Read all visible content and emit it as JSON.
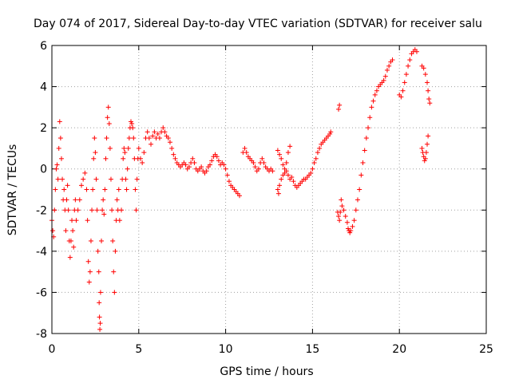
{
  "chart_data": {
    "type": "scatter",
    "title": "Day 074 of 2017, Sidereal Day-to-day VTEC variation (SDTVAR) for receiver salu",
    "xlabel": "GPS time / hours",
    "ylabel": "SDTVAR / TECUs",
    "xlim": [
      0,
      25
    ],
    "ylim": [
      -8,
      6
    ],
    "xticks": [
      "0",
      "5",
      "10",
      "15",
      "20",
      "25"
    ],
    "yticks": [
      "-8",
      "-6",
      "-4",
      "-2",
      "0",
      "2",
      "4",
      "6"
    ],
    "grid": true,
    "marker": "+",
    "color": "#ff0000",
    "series": [
      {
        "name": "SDTVAR",
        "points": [
          [
            0.0,
            -2.5
          ],
          [
            0.05,
            -3.0
          ],
          [
            0.1,
            -3.3
          ],
          [
            0.15,
            -2.0
          ],
          [
            0.2,
            -1.0
          ],
          [
            0.25,
            0.0
          ],
          [
            0.3,
            0.2
          ],
          [
            0.35,
            -0.5
          ],
          [
            0.4,
            1.0
          ],
          [
            0.45,
            2.3
          ],
          [
            0.5,
            1.5
          ],
          [
            0.55,
            0.5
          ],
          [
            0.6,
            -0.5
          ],
          [
            0.65,
            -1.5
          ],
          [
            0.7,
            -1.0
          ],
          [
            0.75,
            -2.0
          ],
          [
            0.8,
            -3.0
          ],
          [
            0.85,
            -1.5
          ],
          [
            0.9,
            -0.8
          ],
          [
            0.95,
            -2.0
          ],
          [
            1.0,
            -3.5
          ],
          [
            1.05,
            -4.3
          ],
          [
            1.1,
            -3.5
          ],
          [
            1.15,
            -2.5
          ],
          [
            1.2,
            -3.0
          ],
          [
            1.25,
            -3.8
          ],
          [
            1.3,
            -2.0
          ],
          [
            1.35,
            -1.5
          ],
          [
            1.4,
            -2.5
          ],
          [
            1.5,
            -2.0
          ],
          [
            1.6,
            -1.5
          ],
          [
            1.7,
            -0.8
          ],
          [
            1.8,
            -0.5
          ],
          [
            1.9,
            -0.2
          ],
          [
            2.0,
            -1.0
          ],
          [
            2.05,
            -2.5
          ],
          [
            2.1,
            -4.5
          ],
          [
            2.15,
            -5.5
          ],
          [
            2.2,
            -5.0
          ],
          [
            2.25,
            -3.5
          ],
          [
            2.3,
            -2.0
          ],
          [
            2.35,
            -1.0
          ],
          [
            2.4,
            0.5
          ],
          [
            2.45,
            1.5
          ],
          [
            2.5,
            0.8
          ],
          [
            2.55,
            -0.5
          ],
          [
            2.6,
            -2.0
          ],
          [
            2.65,
            -4.0
          ],
          [
            2.7,
            -5.0
          ],
          [
            2.72,
            -6.5
          ],
          [
            2.74,
            -7.2
          ],
          [
            2.76,
            -7.8
          ],
          [
            2.78,
            -7.5
          ],
          [
            2.8,
            -6.0
          ],
          [
            2.85,
            -3.5
          ],
          [
            2.9,
            -2.0
          ],
          [
            2.95,
            -1.5
          ],
          [
            3.0,
            -2.2
          ],
          [
            3.05,
            -1.0
          ],
          [
            3.1,
            0.5
          ],
          [
            3.15,
            1.5
          ],
          [
            3.2,
            2.5
          ],
          [
            3.25,
            3.0
          ],
          [
            3.3,
            2.2
          ],
          [
            3.35,
            1.0
          ],
          [
            3.4,
            -0.5
          ],
          [
            3.45,
            -2.0
          ],
          [
            3.5,
            -3.5
          ],
          [
            3.55,
            -5.0
          ],
          [
            3.6,
            -6.0
          ],
          [
            3.65,
            -4.0
          ],
          [
            3.7,
            -2.5
          ],
          [
            3.75,
            -1.5
          ],
          [
            3.8,
            -2.0
          ],
          [
            3.85,
            -1.0
          ],
          [
            3.9,
            -2.5
          ],
          [
            4.0,
            -2.0
          ],
          [
            4.05,
            -0.5
          ],
          [
            4.1,
            0.5
          ],
          [
            4.15,
            1.0
          ],
          [
            4.2,
            0.8
          ],
          [
            4.25,
            -0.5
          ],
          [
            4.3,
            -1.0
          ],
          [
            4.35,
            0.0
          ],
          [
            4.4,
            1.0
          ],
          [
            4.45,
            1.5
          ],
          [
            4.5,
            2.0
          ],
          [
            4.55,
            2.3
          ],
          [
            4.6,
            2.2
          ],
          [
            4.65,
            2.0
          ],
          [
            4.7,
            1.5
          ],
          [
            4.75,
            0.5
          ],
          [
            4.8,
            -1.0
          ],
          [
            4.85,
            -2.0
          ],
          [
            4.9,
            -0.5
          ],
          [
            4.95,
            0.5
          ],
          [
            5.0,
            1.0
          ],
          [
            5.1,
            0.5
          ],
          [
            5.2,
            0.3
          ],
          [
            5.3,
            0.8
          ],
          [
            5.4,
            1.5
          ],
          [
            5.5,
            1.8
          ],
          [
            5.6,
            1.5
          ],
          [
            5.7,
            1.2
          ],
          [
            5.8,
            1.6
          ],
          [
            5.9,
            1.8
          ],
          [
            6.0,
            1.5
          ],
          [
            6.1,
            1.7
          ],
          [
            6.2,
            1.5
          ],
          [
            6.3,
            1.8
          ],
          [
            6.4,
            2.0
          ],
          [
            6.5,
            1.8
          ],
          [
            6.6,
            1.6
          ],
          [
            6.7,
            1.5
          ],
          [
            6.8,
            1.3
          ],
          [
            6.9,
            1.0
          ],
          [
            7.0,
            0.7
          ],
          [
            7.1,
            0.5
          ],
          [
            7.2,
            0.3
          ],
          [
            7.3,
            0.2
          ],
          [
            7.4,
            0.1
          ],
          [
            7.5,
            0.2
          ],
          [
            7.6,
            0.3
          ],
          [
            7.7,
            0.2
          ],
          [
            7.8,
            0.0
          ],
          [
            7.9,
            0.1
          ],
          [
            8.0,
            0.3
          ],
          [
            8.1,
            0.5
          ],
          [
            8.2,
            0.3
          ],
          [
            8.3,
            0.0
          ],
          [
            8.4,
            -0.1
          ],
          [
            8.5,
            0.0
          ],
          [
            8.6,
            0.1
          ],
          [
            8.7,
            -0.1
          ],
          [
            8.8,
            -0.2
          ],
          [
            8.9,
            -0.1
          ],
          [
            9.0,
            0.1
          ],
          [
            9.1,
            0.2
          ],
          [
            9.2,
            0.4
          ],
          [
            9.3,
            0.6
          ],
          [
            9.4,
            0.7
          ],
          [
            9.5,
            0.6
          ],
          [
            9.6,
            0.4
          ],
          [
            9.7,
            0.2
          ],
          [
            9.8,
            0.3
          ],
          [
            9.9,
            0.2
          ],
          [
            10.0,
            0.0
          ],
          [
            10.1,
            -0.3
          ],
          [
            10.2,
            -0.6
          ],
          [
            10.3,
            -0.8
          ],
          [
            10.4,
            -0.9
          ],
          [
            10.5,
            -1.0
          ],
          [
            10.6,
            -1.1
          ],
          [
            10.7,
            -1.2
          ],
          [
            10.8,
            -1.3
          ],
          [
            11.0,
            0.8
          ],
          [
            11.1,
            1.0
          ],
          [
            11.2,
            0.8
          ],
          [
            11.3,
            0.6
          ],
          [
            11.4,
            0.5
          ],
          [
            11.5,
            0.4
          ],
          [
            11.6,
            0.3
          ],
          [
            11.7,
            0.1
          ],
          [
            11.8,
            -0.1
          ],
          [
            11.9,
            0.0
          ],
          [
            12.0,
            0.3
          ],
          [
            12.1,
            0.5
          ],
          [
            12.2,
            0.3
          ],
          [
            12.3,
            0.1
          ],
          [
            12.4,
            0.0
          ],
          [
            12.5,
            -0.1
          ],
          [
            12.6,
            0.0
          ],
          [
            12.7,
            -0.1
          ],
          [
            13.0,
            -1.0
          ],
          [
            13.05,
            -1.2
          ],
          [
            13.1,
            -0.8
          ],
          [
            13.2,
            -0.5
          ],
          [
            13.3,
            -0.3
          ],
          [
            13.4,
            -0.2
          ],
          [
            13.5,
            -0.1
          ],
          [
            13.6,
            -0.3
          ],
          [
            13.7,
            -0.5
          ],
          [
            13.8,
            -0.4
          ],
          [
            13.9,
            -0.6
          ],
          [
            14.0,
            -0.8
          ],
          [
            14.1,
            -0.9
          ],
          [
            14.2,
            -0.8
          ],
          [
            14.3,
            -0.7
          ],
          [
            14.4,
            -0.6
          ],
          [
            14.5,
            -0.5
          ],
          [
            14.6,
            -0.5
          ],
          [
            14.7,
            -0.4
          ],
          [
            14.8,
            -0.3
          ],
          [
            14.9,
            -0.2
          ],
          [
            15.0,
            0.0
          ],
          [
            15.1,
            0.3
          ],
          [
            15.2,
            0.5
          ],
          [
            15.3,
            0.8
          ],
          [
            15.4,
            1.0
          ],
          [
            15.5,
            1.2
          ],
          [
            15.6,
            1.3
          ],
          [
            15.7,
            1.4
          ],
          [
            15.8,
            1.5
          ],
          [
            15.9,
            1.6
          ],
          [
            16.0,
            1.7
          ],
          [
            16.05,
            1.8
          ],
          [
            13.0,
            0.9
          ],
          [
            13.1,
            0.7
          ],
          [
            13.2,
            0.5
          ],
          [
            13.3,
            0.2
          ],
          [
            13.4,
            0.0
          ],
          [
            13.5,
            0.3
          ],
          [
            13.6,
            0.8
          ],
          [
            13.7,
            1.1
          ],
          [
            16.5,
            2.9
          ],
          [
            16.55,
            3.1
          ],
          [
            16.45,
            -2.1
          ],
          [
            16.5,
            -2.3
          ],
          [
            16.55,
            -2.5
          ],
          [
            16.6,
            -2.1
          ],
          [
            16.65,
            -1.5
          ],
          [
            16.7,
            -1.8
          ],
          [
            16.8,
            -2.0
          ],
          [
            16.9,
            -2.3
          ],
          [
            17.0,
            -2.6
          ],
          [
            17.05,
            -2.9
          ],
          [
            17.1,
            -3.0
          ],
          [
            17.15,
            -3.1
          ],
          [
            17.2,
            -3.0
          ],
          [
            17.3,
            -2.8
          ],
          [
            17.4,
            -2.5
          ],
          [
            17.5,
            -2.0
          ],
          [
            17.6,
            -1.5
          ],
          [
            17.7,
            -1.0
          ],
          [
            17.8,
            -0.3
          ],
          [
            17.9,
            0.3
          ],
          [
            18.0,
            0.9
          ],
          [
            18.1,
            1.5
          ],
          [
            18.2,
            2.0
          ],
          [
            18.3,
            2.5
          ],
          [
            18.4,
            3.0
          ],
          [
            18.5,
            3.3
          ],
          [
            18.6,
            3.6
          ],
          [
            18.7,
            3.8
          ],
          [
            18.8,
            4.0
          ],
          [
            18.9,
            4.1
          ],
          [
            19.0,
            4.2
          ],
          [
            19.1,
            4.3
          ],
          [
            19.2,
            4.5
          ],
          [
            19.3,
            4.8
          ],
          [
            19.4,
            5.0
          ],
          [
            19.5,
            5.2
          ],
          [
            19.6,
            5.3
          ],
          [
            20.0,
            3.6
          ],
          [
            20.1,
            3.5
          ],
          [
            20.2,
            3.8
          ],
          [
            20.3,
            4.2
          ],
          [
            20.4,
            4.6
          ],
          [
            20.5,
            5.0
          ],
          [
            20.6,
            5.3
          ],
          [
            20.7,
            5.6
          ],
          [
            20.8,
            5.7
          ],
          [
            20.9,
            5.8
          ],
          [
            21.0,
            5.7
          ],
          [
            21.3,
            5.0
          ],
          [
            21.4,
            4.9
          ],
          [
            21.5,
            4.6
          ],
          [
            21.6,
            4.2
          ],
          [
            21.65,
            3.8
          ],
          [
            21.7,
            3.4
          ],
          [
            21.75,
            3.2
          ],
          [
            21.3,
            1.0
          ],
          [
            21.35,
            0.8
          ],
          [
            21.4,
            0.6
          ],
          [
            21.45,
            0.4
          ],
          [
            21.5,
            0.5
          ],
          [
            21.55,
            0.8
          ],
          [
            21.6,
            1.2
          ],
          [
            21.65,
            1.6
          ]
        ]
      }
    ]
  }
}
